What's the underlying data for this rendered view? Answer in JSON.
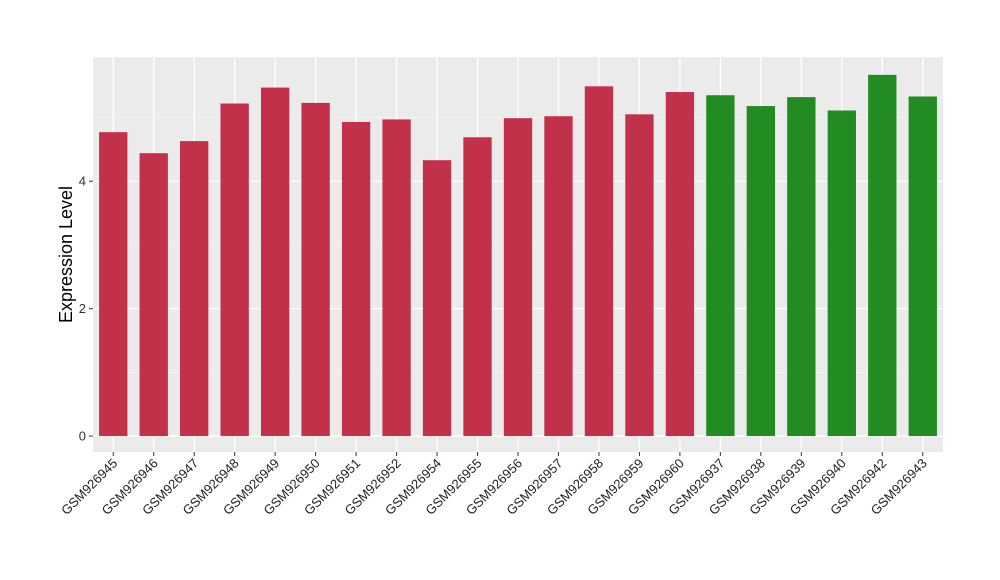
{
  "chart_data": {
    "type": "bar",
    "title": "",
    "xlabel": "",
    "ylabel": "Expression Level",
    "ylim": [
      -0.25,
      5.95
    ],
    "yticks": [
      0,
      2,
      4
    ],
    "ytick_labels": [
      "0",
      "2",
      "4"
    ],
    "grid": true,
    "legend": "none",
    "categories": [
      "GSM926945",
      "GSM926946",
      "GSM926947",
      "GSM926948",
      "GSM926949",
      "GSM926950",
      "GSM926951",
      "GSM926952",
      "GSM926954",
      "GSM926955",
      "GSM926956",
      "GSM926957",
      "GSM926958",
      "GSM926959",
      "GSM926960",
      "GSM926937",
      "GSM926938",
      "GSM926939",
      "GSM926940",
      "GSM926942",
      "GSM926943"
    ],
    "values": [
      4.77,
      4.44,
      4.63,
      5.22,
      5.47,
      5.23,
      4.93,
      4.97,
      4.33,
      4.69,
      4.99,
      5.02,
      5.49,
      5.05,
      5.4,
      5.35,
      5.18,
      5.32,
      5.11,
      5.67,
      5.33
    ],
    "groups": [
      "red",
      "red",
      "red",
      "red",
      "red",
      "red",
      "red",
      "red",
      "red",
      "red",
      "red",
      "red",
      "red",
      "red",
      "red",
      "green",
      "green",
      "green",
      "green",
      "green",
      "green"
    ],
    "colors": {
      "red": "#C3304A",
      "green": "#228B22",
      "panel_background": "#EBEBEB",
      "grid_major": "#FFFFFF",
      "grid_minor": "#F5F5F5"
    }
  }
}
